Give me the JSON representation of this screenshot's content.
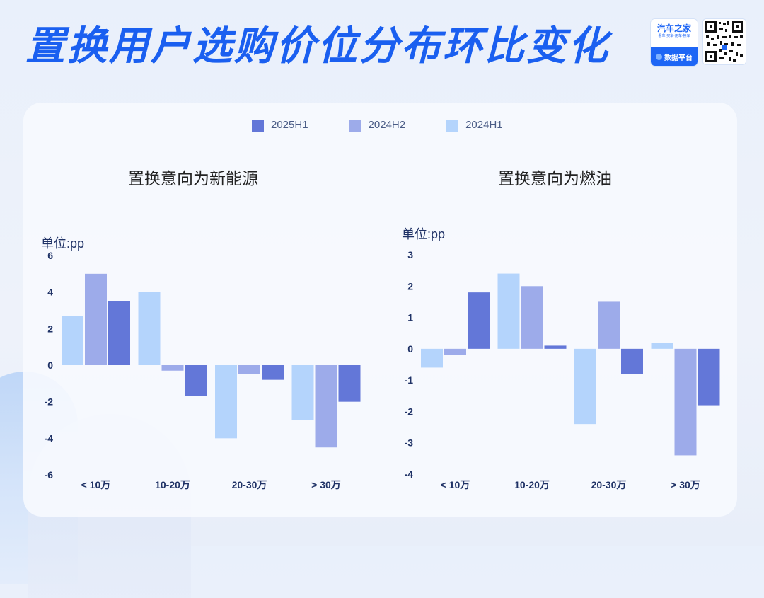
{
  "header": {
    "title": "置换用户选购价位分布环比变化",
    "logo_name": "汽车之家",
    "logo_slogan": "看车·买车·用车·换车",
    "logo_platform": "数据平台"
  },
  "legend": [
    {
      "label": "2025H1",
      "color": "#6377d8"
    },
    {
      "label": "2024H2",
      "color": "#9dabea"
    },
    {
      "label": "2024H1",
      "color": "#b4d4fc"
    }
  ],
  "chart_data": [
    {
      "type": "bar",
      "title": "置换意向为新能源",
      "ylabel": "单位:pp",
      "categories": [
        "< 10万",
        "10-20万",
        "20-30万",
        "> 30万"
      ],
      "ylim": [
        -6,
        6
      ],
      "yticks": [
        6,
        4,
        2,
        0,
        -2,
        -4,
        -6
      ],
      "series": [
        {
          "name": "2024H1",
          "values": [
            2.7,
            4.0,
            -4.0,
            -3.0
          ]
        },
        {
          "name": "2024H2",
          "values": [
            5.0,
            -0.3,
            -0.5,
            -4.5
          ]
        },
        {
          "name": "2025H1",
          "values": [
            3.5,
            -1.7,
            -0.8,
            -2.0
          ]
        }
      ]
    },
    {
      "type": "bar",
      "title": "置换意向为燃油",
      "ylabel": "单位:pp",
      "categories": [
        "< 10万",
        "10-20万",
        "20-30万",
        "> 30万"
      ],
      "ylim": [
        -4,
        3
      ],
      "yticks": [
        3,
        2,
        1,
        0,
        -1,
        -2,
        -3,
        -4
      ],
      "series": [
        {
          "name": "2024H1",
          "values": [
            -0.6,
            2.4,
            -2.4,
            0.2
          ]
        },
        {
          "name": "2024H2",
          "values": [
            -0.2,
            2.0,
            1.5,
            -3.4
          ]
        },
        {
          "name": "2025H1",
          "values": [
            1.8,
            0.1,
            -0.8,
            -1.8
          ]
        }
      ]
    }
  ]
}
